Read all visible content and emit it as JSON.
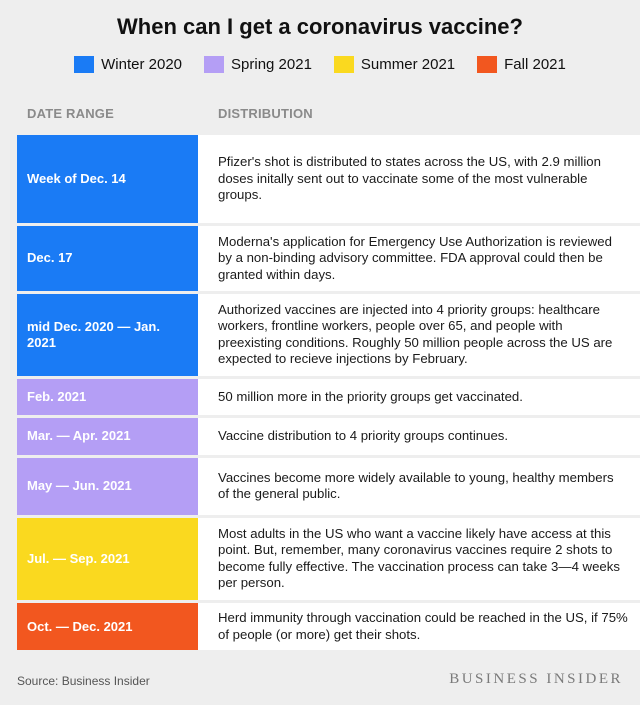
{
  "title": "When can I get a coronavirus vaccine?",
  "legend": [
    {
      "label": "Winter 2020",
      "color": "#1a7bf5"
    },
    {
      "label": "Spring 2021",
      "color": "#b49ef5"
    },
    {
      "label": "Summer 2021",
      "color": "#fad91f"
    },
    {
      "label": "Fall 2021",
      "color": "#f2571f"
    }
  ],
  "columns": {
    "date": "DATE RANGE",
    "distribution": "DISTRIBUTION"
  },
  "rows": [
    {
      "date": "Week of Dec. 14",
      "season": "Winter 2020",
      "color": "#1a7bf5",
      "text": "Pfizer's shot is distributed to states across the US, with 2.9 million doses initally sent out to vaccinate some of the most vulnerable groups."
    },
    {
      "date": "Dec. 17",
      "season": "Winter 2020",
      "color": "#1a7bf5",
      "text": "Moderna's application for Emergency Use Authorization is reviewed by a non-binding advisory committee. FDA approval could then be granted within days."
    },
    {
      "date": "mid Dec. 2020 — Jan. 2021",
      "season": "Winter 2020",
      "color": "#1a7bf5",
      "text": "Authorized vaccines are injected into 4 priority groups: healthcare workers, frontline workers, people over 65, and people with preexisting conditions. Roughly 50 million people across the US are expected to recieve injections by February."
    },
    {
      "date": "Feb. 2021",
      "season": "Spring 2021",
      "color": "#b49ef5",
      "text": "50 million more in the priority groups get vaccinated."
    },
    {
      "date": "Mar. — Apr. 2021",
      "season": "Spring 2021",
      "color": "#b49ef5",
      "text": "Vaccine distribution to 4 priority groups continues."
    },
    {
      "date": "May — Jun. 2021",
      "season": "Spring 2021",
      "color": "#b49ef5",
      "text": "Vaccines become more widely available to young, healthy members of the general public."
    },
    {
      "date": "Jul. — Sep. 2021",
      "season": "Summer 2021",
      "color": "#fad91f",
      "text": "Most adults in the US who want a vaccine likely have access at this point. But, remember, many coronavirus vaccines require 2 shots to become fully effective. The vaccination process can take 3—4 weeks per person."
    },
    {
      "date": "Oct. — Dec. 2021",
      "season": "Fall 2021",
      "color": "#f2571f",
      "text": "Herd immunity through vaccination could be reached in the US, if 75% of people (or more) get their shots."
    }
  ],
  "source": "Source: Business Insider",
  "brand": "BUSINESS INSIDER"
}
